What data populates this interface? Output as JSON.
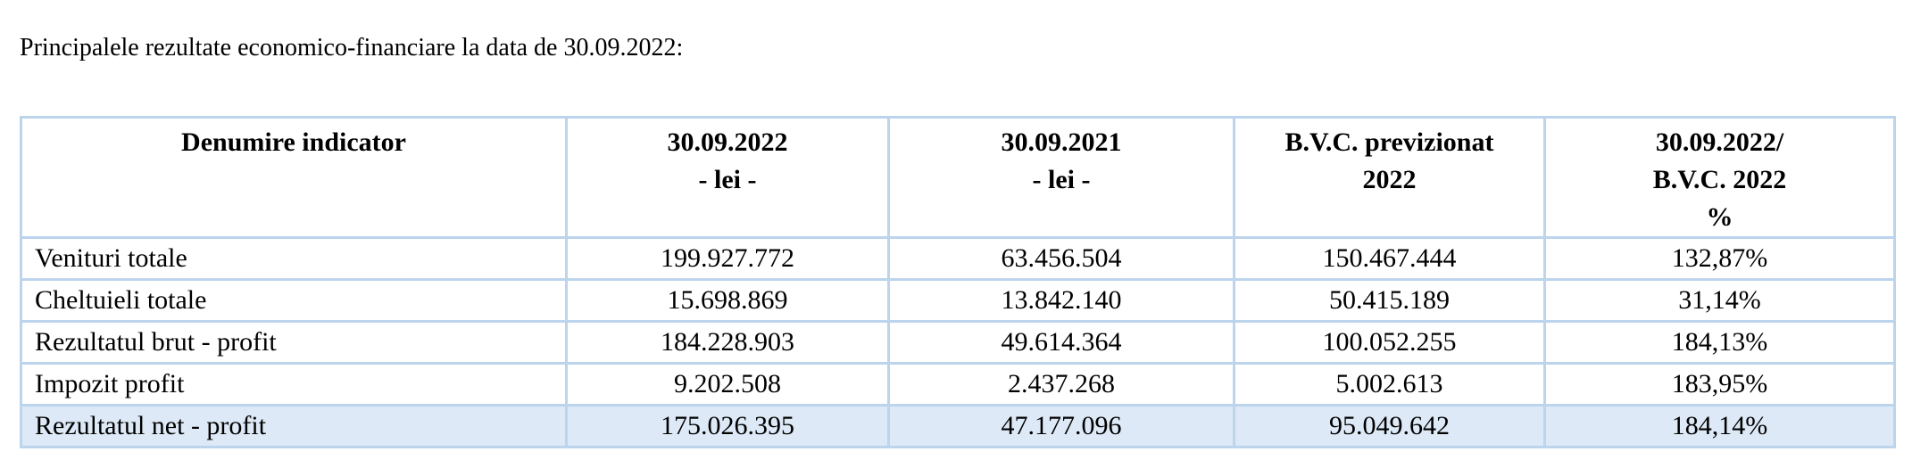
{
  "intro": "Principalele rezultate economico-financiare la data de 30.09.2022:",
  "table": {
    "headers": [
      {
        "lines": [
          "Denumire indicator"
        ]
      },
      {
        "lines": [
          "30.09.2022",
          "- lei -"
        ]
      },
      {
        "lines": [
          "30.09.2021",
          "- lei -"
        ]
      },
      {
        "lines": [
          "B.V.C. previzionat",
          "2022"
        ]
      },
      {
        "lines": [
          "30.09.2022/",
          "B.V.C. 2022",
          "%"
        ]
      }
    ],
    "rows": [
      {
        "label": "Venituri totale",
        "v2022": "199.927.772",
        "v2021": "63.456.504",
        "bvc": "150.467.444",
        "pct": "132,87%"
      },
      {
        "label": "Cheltuieli totale",
        "v2022": "15.698.869",
        "v2021": "13.842.140",
        "bvc": "50.415.189",
        "pct": "31,14%"
      },
      {
        "label": "Rezultatul brut - profit",
        "v2022": "184.228.903",
        "v2021": "49.614.364",
        "bvc": "100.052.255",
        "pct": "184,13%"
      },
      {
        "label": "Impozit profit",
        "v2022": "9.202.508",
        "v2021": "2.437.268",
        "bvc": "5.002.613",
        "pct": "183,95%"
      },
      {
        "label": "Rezultatul net - profit",
        "v2022": "175.026.395",
        "v2021": "47.177.096",
        "bvc": "95.049.642",
        "pct": "184,14%"
      }
    ],
    "colors": {
      "border": "#bcd4ec",
      "highlight_row": "#dde9f6"
    }
  }
}
